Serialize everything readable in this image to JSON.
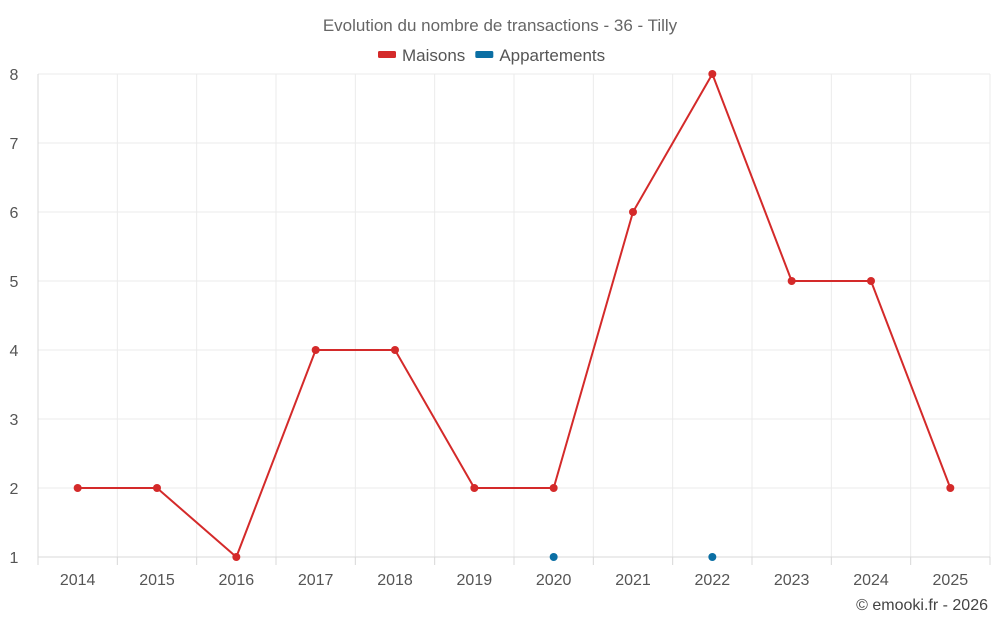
{
  "chart_data": {
    "type": "line",
    "title": "Evolution du nombre de transactions - 36 - Tilly",
    "x": [
      "2014",
      "2015",
      "2016",
      "2017",
      "2018",
      "2019",
      "2020",
      "2021",
      "2022",
      "2023",
      "2024",
      "2025"
    ],
    "ylim": [
      1,
      8
    ],
    "yticks": [
      "1",
      "2",
      "3",
      "4",
      "5",
      "6",
      "7",
      "8"
    ],
    "grid": true,
    "legend_position": "top-center",
    "series": [
      {
        "name": "Maisons",
        "color": "#d42a2a",
        "values": [
          2,
          2,
          1,
          4,
          4,
          2,
          2,
          6,
          8,
          5,
          5,
          2
        ]
      },
      {
        "name": "Appartements",
        "color": "#0b6fa4",
        "values": [
          null,
          null,
          null,
          null,
          null,
          null,
          1,
          null,
          1,
          null,
          null,
          null
        ]
      }
    ]
  },
  "credit": "© emooki.fr - 2026"
}
